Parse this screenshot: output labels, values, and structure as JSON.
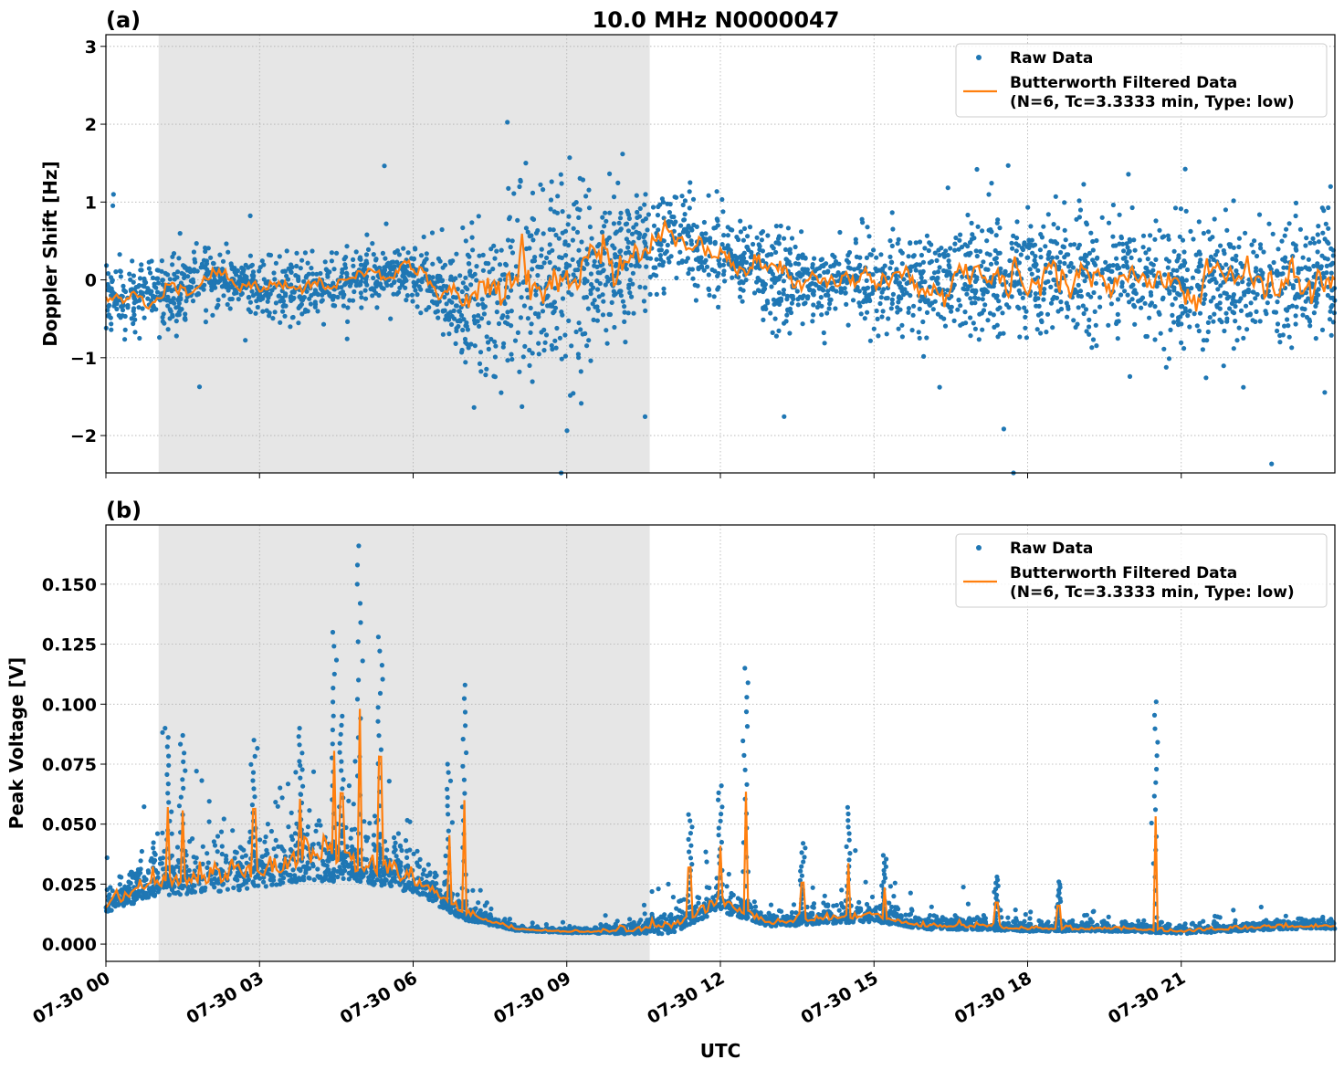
{
  "chart_data": [
    {
      "type": "scatter",
      "panel_label": "(a)",
      "title": "10.0 MHz N0000047",
      "ylabel": "Doppler Shift [Hz]",
      "xlabel": "",
      "ylim": [
        -2.48,
        3.15
      ],
      "xlim_hours": [
        0,
        24
      ],
      "yticks": [
        3,
        2,
        1,
        0,
        -1,
        -2
      ],
      "ytick_labels": [
        "3",
        "2",
        "1",
        "0",
        "−1",
        "−2"
      ],
      "grid": true,
      "legend_position": "top-right",
      "shaded_interval_hours": [
        1.03,
        10.62
      ],
      "series": [
        {
          "name": "Raw Data",
          "color": "#1f77b4",
          "hourly_center": [
            -0.2,
            -0.2,
            0.05,
            -0.1,
            -0.1,
            0.1,
            0.1,
            -0.3,
            0,
            0,
            0.2,
            0.6,
            0.35,
            0.05,
            0,
            0,
            0,
            0,
            0,
            0,
            0,
            -0.05,
            0,
            0
          ],
          "hourly_spread": [
            0.4,
            0.4,
            0.35,
            0.3,
            0.35,
            0.3,
            0.3,
            0.7,
            1.2,
            1.2,
            0.8,
            0.6,
            0.5,
            0.5,
            0.45,
            0.5,
            0.6,
            0.65,
            0.7,
            0.7,
            0.7,
            0.75,
            0.7,
            0.7
          ]
        },
        {
          "name": "Butterworth Filtered Data",
          "label_line2": "(N=6, Tc=3.3333 min, Type: low)",
          "color": "#ff7f0e"
        }
      ]
    },
    {
      "type": "scatter",
      "panel_label": "(b)",
      "ylabel": "Peak Voltage [V]",
      "xlabel": "UTC",
      "ylim": [
        -0.0072,
        0.1747
      ],
      "xlim_hours": [
        0,
        24
      ],
      "yticks": [
        0.0,
        0.025,
        0.05,
        0.075,
        0.1,
        0.125,
        0.15
      ],
      "ytick_labels": [
        "0.000",
        "0.025",
        "0.050",
        "0.075",
        "0.100",
        "0.125",
        "0.150"
      ],
      "xtick_labels": [
        "07-30 00",
        "07-30 03",
        "07-30 06",
        "07-30 09",
        "07-30 12",
        "07-30 15",
        "07-30 18",
        "07-30 21"
      ],
      "xticks_hours": [
        0,
        3,
        6,
        9,
        12,
        15,
        18,
        21
      ],
      "grid": true,
      "legend_position": "top-right",
      "shaded_interval_hours": [
        1.03,
        10.62
      ],
      "series": [
        {
          "name": "Raw Data",
          "color": "#1f77b4",
          "hourly_center": [
            0.015,
            0.024,
            0.025,
            0.028,
            0.032,
            0.03,
            0.025,
            0.012,
            0.006,
            0.005,
            0.005,
            0.006,
            0.016,
            0.008,
            0.01,
            0.011,
            0.007,
            0.007,
            0.006,
            0.006,
            0.006,
            0.005,
            0.006,
            0.007
          ],
          "hourly_spread": [
            0.008,
            0.015,
            0.016,
            0.018,
            0.022,
            0.018,
            0.014,
            0.008,
            0.0015,
            0.0015,
            0.003,
            0.008,
            0.01,
            0.004,
            0.006,
            0.007,
            0.004,
            0.004,
            0.003,
            0.003,
            0.003,
            0.003,
            0.003,
            0.003
          ],
          "spikes": [
            [
              4.95,
              0.166
            ],
            [
              4.45,
              0.13
            ],
            [
              5.35,
              0.128
            ],
            [
              7.0,
              0.108
            ],
            [
              12.5,
              0.115
            ],
            [
              20.5,
              0.101
            ],
            [
              2.9,
              0.085
            ],
            [
              1.2,
              0.09
            ],
            [
              1.5,
              0.087
            ],
            [
              3.8,
              0.09
            ],
            [
              4.6,
              0.095
            ],
            [
              6.7,
              0.075
            ],
            [
              11.4,
              0.054
            ],
            [
              13.6,
              0.042
            ],
            [
              14.5,
              0.057
            ],
            [
              15.2,
              0.037
            ],
            [
              17.4,
              0.028
            ],
            [
              18.6,
              0.026
            ],
            [
              12.0,
              0.066
            ]
          ]
        },
        {
          "name": "Butterworth Filtered Data",
          "label_line2": "(N=6, Tc=3.3333 min, Type: low)",
          "color": "#ff7f0e"
        }
      ]
    }
  ]
}
